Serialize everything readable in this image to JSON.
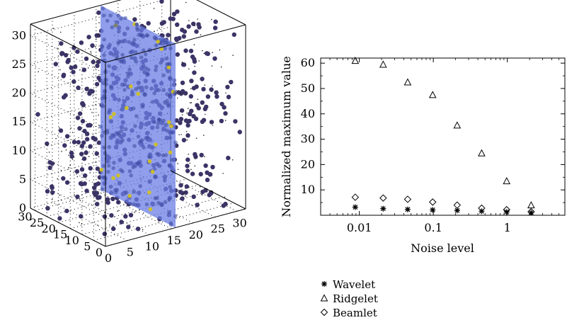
{
  "chart_data": [
    {
      "type": "scatter3d",
      "title": "",
      "axes": {
        "x": {
          "range": [
            0,
            32
          ],
          "ticks": [
            "0",
            "5",
            "10",
            "15",
            "20",
            "25",
            "30"
          ]
        },
        "y": {
          "range": [
            0,
            32
          ],
          "ticks": [
            "0",
            "5",
            "10",
            "15",
            "20",
            "25",
            "30"
          ]
        },
        "z": {
          "range": [
            0,
            32
          ],
          "ticks": [
            "0",
            "5",
            "10",
            "15",
            "20",
            "25",
            "30"
          ]
        }
      },
      "plane": {
        "description_color": "#5b6fd6",
        "x_value": 16
      },
      "colors": {
        "points": "#3b3466",
        "plane": "#6b7ee6",
        "highlight": "#d4c21a"
      }
    },
    {
      "type": "scatter",
      "xlabel": "Noise level",
      "ylabel": "Normalized maximum value",
      "xscale": "log",
      "xlim": [
        0.003,
        6
      ],
      "ylim": [
        0,
        62
      ],
      "xticks": [
        {
          "v": 0.01,
          "label": "0.01"
        },
        {
          "v": 0.1,
          "label": "0.1"
        },
        {
          "v": 1,
          "label": "1"
        }
      ],
      "yticks": [
        {
          "v": 10,
          "label": "10"
        },
        {
          "v": 20,
          "label": "20"
        },
        {
          "v": 30,
          "label": "30"
        },
        {
          "v": 40,
          "label": "40"
        },
        {
          "v": 50,
          "label": "50"
        },
        {
          "v": 60,
          "label": "60"
        }
      ],
      "x": [
        0.0088,
        0.021,
        0.045,
        0.098,
        0.21,
        0.45,
        0.98,
        2.1
      ],
      "series": [
        {
          "name": "Wavelet",
          "marker": "star",
          "values": [
            3.2,
            2.6,
            2.3,
            2.1,
            1.9,
            1.6,
            1.3,
            1.0
          ]
        },
        {
          "name": "Ridgelet",
          "marker": "triangle",
          "values": [
            61,
            59.5,
            52.5,
            47.5,
            35.5,
            24.5,
            13.5,
            4.0
          ]
        },
        {
          "name": "Beamlet",
          "marker": "diamond",
          "values": [
            7.1,
            6.8,
            6.3,
            5.2,
            4.0,
            2.8,
            2.2,
            1.4
          ]
        }
      ],
      "legend_position": "below"
    }
  ]
}
